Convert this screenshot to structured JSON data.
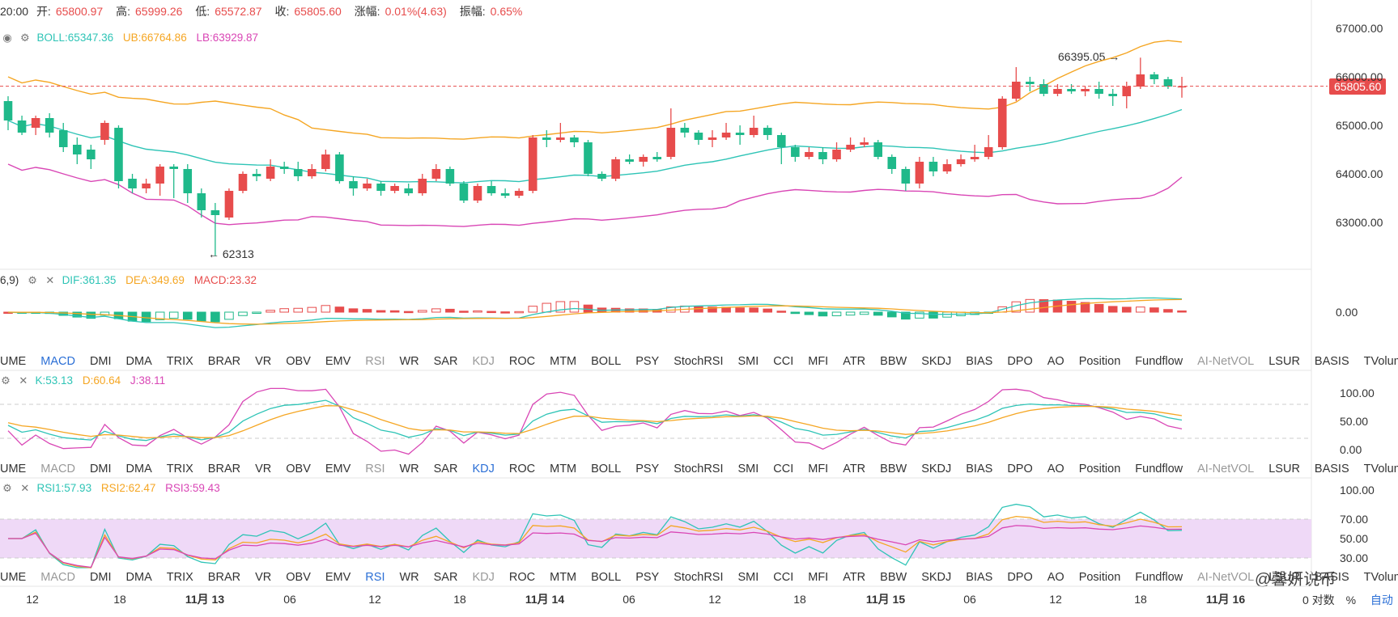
{
  "header": {
    "time": "20:00",
    "open_label": "开:",
    "open": "65800.97",
    "high_label": "高:",
    "high": "65999.26",
    "low_label": "低:",
    "low": "65572.87",
    "close_label": "收:",
    "close": "65805.60",
    "chg_label": "涨幅:",
    "chg": "0.01%(4.63)",
    "amp_label": "振幅:",
    "amp": "0.65%"
  },
  "boll": {
    "mid": "BOLL:65347.36",
    "ub": "UB:66764.86",
    "lb": "LB:63929.87"
  },
  "macd": {
    "params": "6,9)",
    "dif": "DIF:361.35",
    "dea": "DEA:349.69",
    "macd": "MACD:23.32"
  },
  "kdj": {
    "k": "K:53.13",
    "d": "D:60.64",
    "j": "J:38.11"
  },
  "rsi": {
    "r1": "RSI1:57.93",
    "r2": "RSI2:62.47",
    "r3": "RSI3:59.43"
  },
  "tabs": [
    "UME",
    "MACD",
    "DMI",
    "DMA",
    "TRIX",
    "BRAR",
    "VR",
    "OBV",
    "EMV",
    "RSI",
    "WR",
    "SAR",
    "KDJ",
    "ROC",
    "MTM",
    "BOLL",
    "PSY",
    "StochRSI",
    "SMI",
    "CCI",
    "MFI",
    "ATR",
    "BBW",
    "SKDJ",
    "BIAS",
    "DPO",
    "AO",
    "Position",
    "Fundflow",
    "AI-NetVOL",
    "LSUR",
    "BASIS",
    "TVolume",
    "FTBS"
  ],
  "price_axis": [
    "67000.00",
    "66000.00",
    "65000.00",
    "64000.00",
    "63000.00"
  ],
  "last_price": "65805.60",
  "high_mark": "66395.05 →",
  "low_mark": "← 62313",
  "macd_axis": [
    "0.00"
  ],
  "kdj_axis": [
    "100.00",
    "50.00",
    "0.00"
  ],
  "rsi_axis": [
    "100.00",
    "70.00",
    "50.00",
    "30.00"
  ],
  "time_axis": [
    {
      "t": "12",
      "bold": false
    },
    {
      "t": "18",
      "bold": false
    },
    {
      "t": "11月 13",
      "bold": true
    },
    {
      "t": "06",
      "bold": false
    },
    {
      "t": "12",
      "bold": false
    },
    {
      "t": "18",
      "bold": false
    },
    {
      "t": "11月 14",
      "bold": true
    },
    {
      "t": "06",
      "bold": false
    },
    {
      "t": "12",
      "bold": false
    },
    {
      "t": "18",
      "bold": false
    },
    {
      "t": "11月 15",
      "bold": true
    },
    {
      "t": "06",
      "bold": false
    },
    {
      "t": "12",
      "bold": false
    },
    {
      "t": "18",
      "bold": false
    },
    {
      "t": "11月 16",
      "bold": true
    }
  ],
  "bottom_right": {
    "pct": "%",
    "log": "对数",
    "auto": "自动",
    "zero": "0"
  },
  "watermark": "@馨妍说币",
  "colors": {
    "up": "#e74c4c",
    "down": "#1fb98a",
    "boll_mid": "#2ec4b6",
    "ub": "#f5a623",
    "lb": "#d946b5",
    "rsi_band": "#efd9f7"
  },
  "chart_data": {
    "type": "candlestick",
    "title": "",
    "interval_hours": 2,
    "ylim": [
      62100,
      67300
    ],
    "candles": [
      [
        65500,
        65100,
        65600,
        64900
      ],
      [
        65100,
        64850,
        65200,
        64800
      ],
      [
        64950,
        65150,
        65200,
        64800
      ],
      [
        65150,
        64850,
        65250,
        64750
      ],
      [
        64900,
        64550,
        65050,
        64450
      ],
      [
        64600,
        64400,
        64750,
        64200
      ],
      [
        64500,
        64300,
        64600,
        64100
      ],
      [
        64700,
        65050,
        65100,
        64600
      ],
      [
        64950,
        63850,
        65000,
        63700
      ],
      [
        63900,
        63700,
        64000,
        63600
      ],
      [
        63700,
        63800,
        63900,
        63600
      ],
      [
        63800,
        64150,
        64200,
        63550
      ],
      [
        64150,
        64100,
        64200,
        63500
      ],
      [
        64100,
        63600,
        64200,
        63400
      ],
      [
        63600,
        63250,
        63700,
        63100
      ],
      [
        63250,
        63150,
        63400,
        62313
      ],
      [
        63100,
        63650,
        63700,
        63050
      ],
      [
        63650,
        64000,
        64050,
        63600
      ],
      [
        64000,
        63950,
        64100,
        63850
      ],
      [
        63900,
        64150,
        64300,
        63850
      ],
      [
        64150,
        64100,
        64250,
        64000
      ],
      [
        64100,
        63950,
        64250,
        63850
      ],
      [
        63950,
        64100,
        64200,
        63900
      ],
      [
        64100,
        64400,
        64500,
        64050
      ],
      [
        64400,
        63850,
        64450,
        63800
      ],
      [
        63850,
        63700,
        63950,
        63550
      ],
      [
        63700,
        63800,
        63900,
        63650
      ],
      [
        63800,
        63650,
        63850,
        63550
      ],
      [
        63650,
        63750,
        63800,
        63600
      ],
      [
        63700,
        63600,
        63800,
        63550
      ],
      [
        63600,
        63900,
        64000,
        63550
      ],
      [
        63900,
        64100,
        64200,
        63850
      ],
      [
        64100,
        63800,
        64150,
        63750
      ],
      [
        63800,
        63450,
        63850,
        63400
      ],
      [
        63450,
        63750,
        63800,
        63400
      ],
      [
        63750,
        63600,
        63850,
        63550
      ],
      [
        63600,
        63550,
        63700,
        63500
      ],
      [
        63550,
        63650,
        63700,
        63500
      ],
      [
        63650,
        64750,
        64800,
        63600
      ],
      [
        64750,
        64700,
        64900,
        64550
      ],
      [
        64700,
        64750,
        65050,
        64650
      ],
      [
        64750,
        64650,
        64800,
        64550
      ],
      [
        64650,
        64000,
        64700,
        63950
      ],
      [
        64000,
        63900,
        64050,
        63850
      ],
      [
        63900,
        64300,
        64350,
        63850
      ],
      [
        64300,
        64250,
        64400,
        64200
      ],
      [
        64250,
        64350,
        64400,
        64150
      ],
      [
        64350,
        64300,
        64450,
        64250
      ],
      [
        64350,
        64950,
        65350,
        64300
      ],
      [
        64950,
        64850,
        65050,
        64750
      ],
      [
        64850,
        64700,
        64900,
        64600
      ],
      [
        64700,
        64750,
        64900,
        64550
      ],
      [
        64750,
        64850,
        65050,
        64700
      ],
      [
        64850,
        64800,
        65000,
        64600
      ],
      [
        64800,
        64950,
        65200,
        64750
      ],
      [
        64950,
        64800,
        65000,
        64700
      ],
      [
        64800,
        64550,
        64850,
        64200
      ],
      [
        64550,
        64350,
        64600,
        64250
      ],
      [
        64350,
        64450,
        64550,
        64300
      ],
      [
        64450,
        64300,
        64550,
        64200
      ],
      [
        64300,
        64500,
        64650,
        64250
      ],
      [
        64500,
        64600,
        64750,
        64450
      ],
      [
        64600,
        64650,
        64750,
        64550
      ],
      [
        64650,
        64350,
        64700,
        64300
      ],
      [
        64350,
        64100,
        64400,
        64000
      ],
      [
        64100,
        63800,
        64150,
        63650
      ],
      [
        63800,
        64250,
        64350,
        63700
      ],
      [
        64250,
        64050,
        64350,
        63950
      ],
      [
        64050,
        64200,
        64300,
        64000
      ],
      [
        64200,
        64300,
        64400,
        64150
      ],
      [
        64300,
        64350,
        64600,
        64250
      ],
      [
        64350,
        64550,
        64800,
        64300
      ],
      [
        64550,
        65550,
        65600,
        64500
      ],
      [
        65550,
        65900,
        66200,
        65500
      ],
      [
        65900,
        65850,
        66000,
        65700
      ],
      [
        65850,
        65650,
        65950,
        65600
      ],
      [
        65650,
        65750,
        65850,
        65600
      ],
      [
        65750,
        65700,
        65850,
        65650
      ],
      [
        65700,
        65750,
        65800,
        65600
      ],
      [
        65750,
        65650,
        65900,
        65550
      ],
      [
        65650,
        65600,
        65750,
        65400
      ],
      [
        65600,
        65800,
        65900,
        65350
      ],
      [
        65800,
        66050,
        66395.05,
        65750
      ],
      [
        66050,
        65950,
        66100,
        65850
      ],
      [
        65950,
        65800,
        66000,
        65750
      ],
      [
        65800,
        65806,
        66000,
        65570
      ]
    ]
  }
}
